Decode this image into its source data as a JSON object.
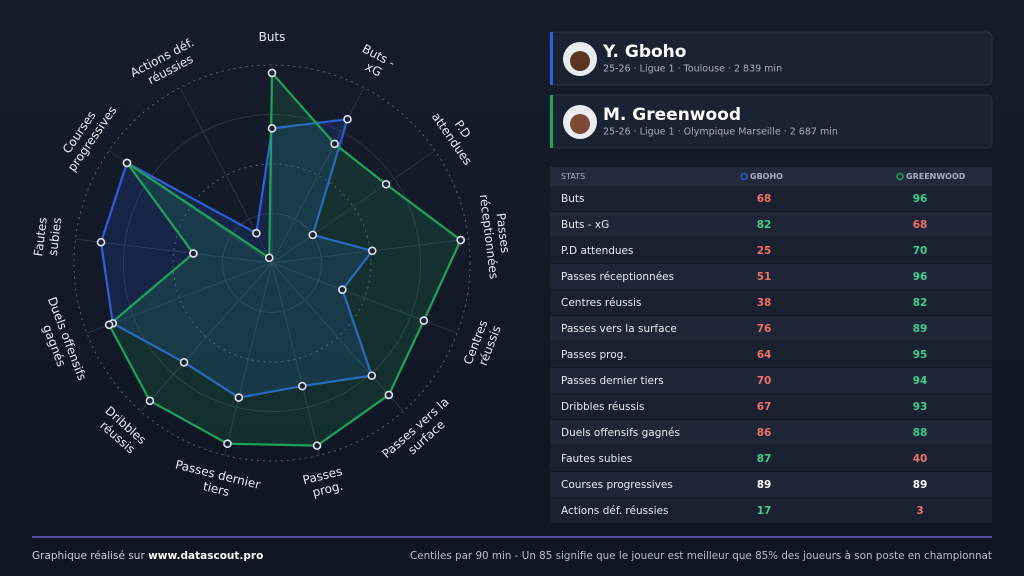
{
  "chart_data": {
    "type": "radar",
    "categories": [
      "Buts",
      "Buts - xG",
      "P.D attendues",
      "Passes réceptionnées",
      "Centres réussis",
      "Passes vers la surface",
      "Passes prog.",
      "Passes dernier tiers",
      "Dribbles réussis",
      "Duels offensifs gagnés",
      "Fautes subies",
      "Courses progressives",
      "Actions déf. réussies"
    ],
    "series": [
      {
        "name": "Y. Gboho",
        "color": "#2f5fd6",
        "values": [
          68,
          82,
          25,
          51,
          38,
          76,
          64,
          70,
          67,
          86,
          87,
          89,
          17
        ]
      },
      {
        "name": "M. Greenwood",
        "color": "#1fa35a",
        "values": [
          96,
          68,
          70,
          96,
          82,
          89,
          95,
          94,
          93,
          88,
          40,
          89,
          3
        ]
      }
    ],
    "rlim": [
      0,
      100
    ],
    "rticks": [
      25,
      50,
      75,
      100
    ]
  },
  "players": [
    {
      "subtitle": "25-26 · Ligue 1 · Toulouse · 2 839 min"
    },
    {
      "subtitle": "25-26 · Ligue 1 · Olympique Marseille · 2 687 min"
    }
  ],
  "table": {
    "header": [
      "STATS",
      "GBOHO",
      "GREENWOOD"
    ]
  },
  "footer": {
    "left": "Graphique réalisé sur",
    "site": "www.datascout.pro",
    "right": "Centiles par 90 min - Un 85 signifie que le joueur est meilleur que 85% des joueurs à son poste en championnat"
  }
}
